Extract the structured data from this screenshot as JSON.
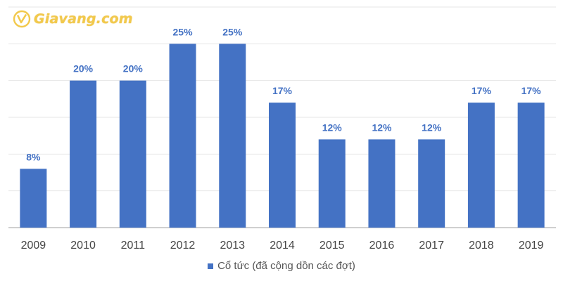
{
  "logo": {
    "text": "Giavang.com",
    "icon": "coin-logo-icon",
    "color": "#f2c94c"
  },
  "chart_data": {
    "type": "bar",
    "categories": [
      "2009",
      "2010",
      "2011",
      "2012",
      "2013",
      "2014",
      "2015",
      "2016",
      "2017",
      "2018",
      "2019"
    ],
    "series": [
      {
        "name": "Cổ tức (đã cộng dồn các đợt)",
        "values": [
          8,
          20,
          20,
          25,
          25,
          17,
          12,
          12,
          12,
          17,
          17
        ],
        "labels": [
          "8%",
          "20%",
          "20%",
          "25%",
          "25%",
          "17%",
          "12%",
          "12%",
          "12%",
          "17%",
          "17%"
        ],
        "color": "#4472c4"
      }
    ],
    "title": "",
    "xlabel": "",
    "ylabel": "",
    "ylim": [
      0,
      30
    ],
    "grid": true,
    "legend": "bottom-center",
    "label_color": "#4472c4",
    "gridline_color": "#e6e6e6",
    "axis_color": "#bfbfbf"
  }
}
